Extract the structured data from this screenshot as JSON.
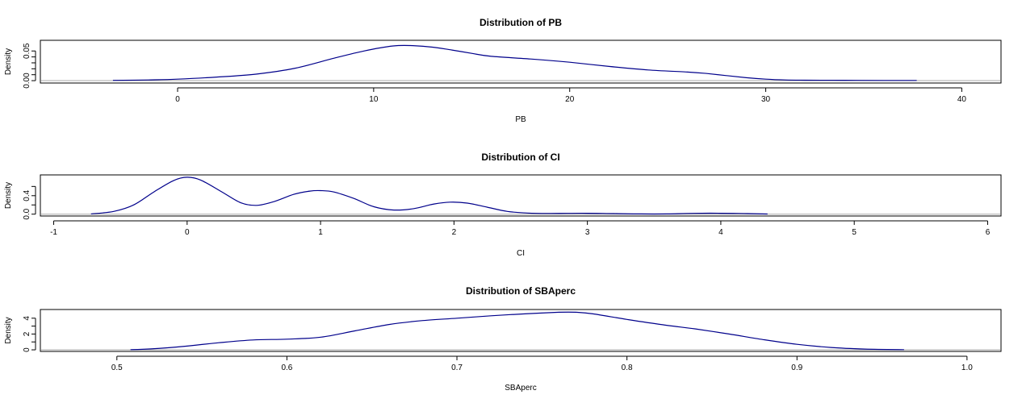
{
  "colors": {
    "curve": "#00008b",
    "baseline": "#a9a9a9",
    "axis": "#000000"
  },
  "chart_data": [
    {
      "type": "line",
      "title": "Distribution of PB",
      "xlabel": "PB",
      "ylabel": "Density",
      "xlim": [
        -7,
        42
      ],
      "ylim": [
        -0.004,
        0.068
      ],
      "x_ticks": [
        0,
        10,
        20,
        30,
        40
      ],
      "x_tick_labels": [
        "0",
        "10",
        "20",
        "30",
        "40"
      ],
      "y_ticks": [
        0,
        0.05
      ],
      "y_minor_ticks": [
        0.01,
        0.02,
        0.03,
        0.04
      ],
      "y_tick_labels": [
        "0.00",
        "0.05"
      ],
      "grid": false,
      "series": [
        {
          "x": [
            -3.3,
            -1.5,
            0,
            2,
            4,
            6,
            8,
            9.5,
            11,
            12,
            13,
            14,
            15,
            16,
            18,
            20,
            22,
            24,
            26,
            27,
            28,
            29,
            30,
            31,
            32,
            34,
            36,
            37.7
          ],
          "y": [
            0.0005,
            0.0012,
            0.0025,
            0.006,
            0.011,
            0.021,
            0.038,
            0.05,
            0.0585,
            0.059,
            0.0565,
            0.0515,
            0.046,
            0.041,
            0.0365,
            0.031,
            0.024,
            0.018,
            0.0145,
            0.012,
            0.0085,
            0.005,
            0.0025,
            0.0012,
            0.0008,
            0.0006,
            0.0004,
            0.0003
          ]
        }
      ]
    },
    {
      "type": "line",
      "title": "Distribution of CI",
      "xlabel": "CI",
      "ylabel": "Density",
      "xlim": [
        -1.1,
        6.1
      ],
      "ylim": [
        -0.04,
        0.85
      ],
      "x_ticks": [
        -1,
        0,
        1,
        2,
        3,
        4,
        5,
        6
      ],
      "x_tick_labels": [
        "-1",
        "0",
        "1",
        "2",
        "3",
        "4",
        "5",
        "6"
      ],
      "y_ticks": [
        0,
        0.2,
        0.4,
        0.6
      ],
      "y_tick_labels": [
        "0.0",
        "",
        "0.4",
        ""
      ],
      "grid": false,
      "series": [
        {
          "x": [
            -0.72,
            -0.55,
            -0.4,
            -0.25,
            -0.1,
            0,
            0.1,
            0.25,
            0.4,
            0.52,
            0.65,
            0.8,
            0.92,
            1.0,
            1.1,
            1.25,
            1.4,
            1.55,
            1.7,
            1.85,
            1.97,
            2.1,
            2.25,
            2.4,
            2.55,
            2.7,
            2.85,
            3.0,
            3.2,
            3.4,
            3.6,
            3.8,
            4.0,
            4.2,
            4.35
          ],
          "y": [
            0.005,
            0.06,
            0.2,
            0.48,
            0.73,
            0.8,
            0.74,
            0.5,
            0.25,
            0.19,
            0.27,
            0.43,
            0.5,
            0.51,
            0.48,
            0.34,
            0.16,
            0.09,
            0.12,
            0.22,
            0.26,
            0.24,
            0.15,
            0.06,
            0.025,
            0.015,
            0.018,
            0.02,
            0.012,
            0.005,
            0.006,
            0.018,
            0.02,
            0.012,
            0.004
          ]
        }
      ]
    },
    {
      "type": "line",
      "title": "Distribution of SBAperc",
      "xlabel": "SBAperc",
      "ylabel": "Density",
      "xlim": [
        0.455,
        1.02
      ],
      "ylim": [
        -0.2,
        5.1
      ],
      "x_ticks": [
        0.5,
        0.6,
        0.7,
        0.8,
        0.9,
        1.0
      ],
      "x_tick_labels": [
        "0.5",
        "0.6",
        "0.7",
        "0.8",
        "0.9",
        "1.0"
      ],
      "y_ticks": [
        0,
        1,
        2,
        3,
        4
      ],
      "y_tick_labels": [
        "0",
        "",
        "2",
        "",
        "4"
      ],
      "grid": false,
      "series": [
        {
          "x": [
            0.508,
            0.52,
            0.54,
            0.56,
            0.58,
            0.6,
            0.62,
            0.64,
            0.66,
            0.68,
            0.7,
            0.72,
            0.74,
            0.76,
            0.77,
            0.78,
            0.8,
            0.82,
            0.84,
            0.86,
            0.88,
            0.9,
            0.92,
            0.94,
            0.963
          ],
          "y": [
            0.02,
            0.12,
            0.45,
            0.9,
            1.25,
            1.35,
            1.6,
            2.4,
            3.2,
            3.7,
            4.0,
            4.3,
            4.55,
            4.75,
            4.75,
            4.55,
            3.85,
            3.2,
            2.65,
            2.0,
            1.3,
            0.7,
            0.3,
            0.1,
            0.02
          ]
        }
      ]
    }
  ]
}
